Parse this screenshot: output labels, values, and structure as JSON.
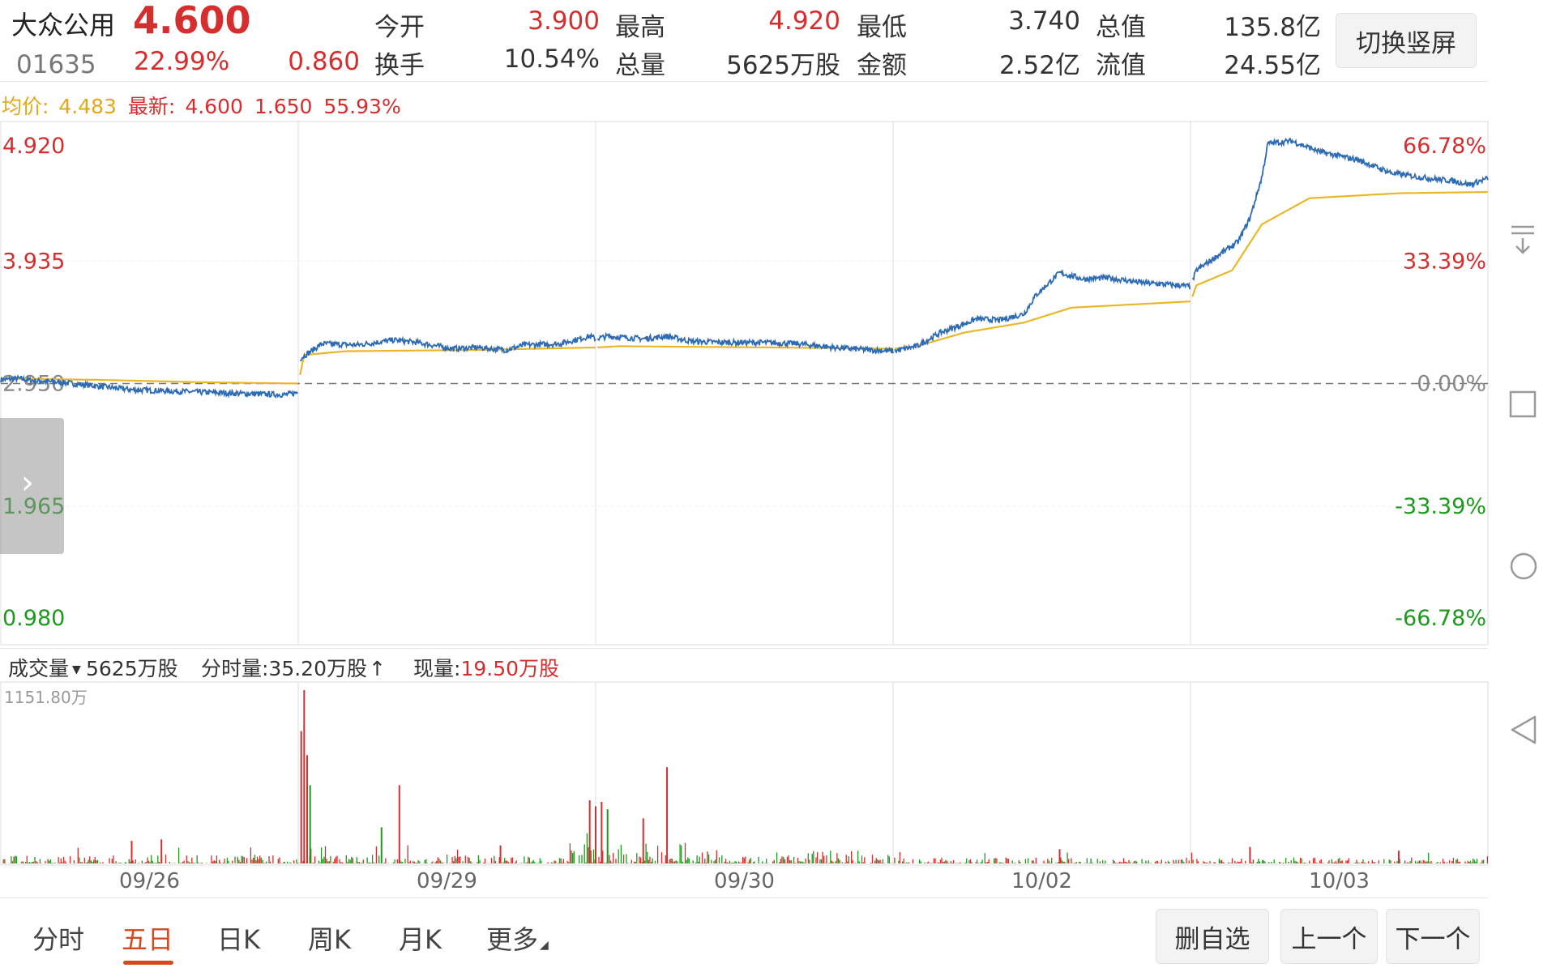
{
  "stock": {
    "name": "大众公用",
    "price": "4.600",
    "code": "01635",
    "change_pct": "22.99%",
    "change": "0.860"
  },
  "quote": {
    "open_label": "今开",
    "open": "3.900",
    "high_label": "最高",
    "high": "4.920",
    "low_label": "最低",
    "low": "3.740",
    "mktcap_label": "总值",
    "mktcap": "135.8亿",
    "turnover_label": "换手",
    "turnover": "10.54%",
    "volume_label": "总量",
    "volume": "5625万股",
    "amount_label": "金额",
    "amount": "2.52亿",
    "float_label": "流值",
    "float": "24.55亿"
  },
  "switch_button": "切换竖屏",
  "avg_bar": {
    "avg_label": "均价:",
    "avg_value": "4.483",
    "latest_label": "最新:",
    "latest_value": "4.600",
    "change": "1.650",
    "change_pct": "55.93%"
  },
  "volume_bar": {
    "selector": "成交量",
    "total": "5625万股",
    "tick_label": "分时量:35.20万股",
    "arrow": "↑",
    "current_label": "现量:",
    "current_value": "19.50万股"
  },
  "tabs": [
    "分时",
    "五日",
    "日K",
    "周K",
    "月K",
    "更多"
  ],
  "active_tab": 1,
  "actions": {
    "remove_watch": "删自选",
    "prev": "上一个",
    "next": "下一个"
  },
  "colors": {
    "up": "#d42e2e",
    "down": "#1c9a1c",
    "price_line": "#2e6bb5",
    "avg_line": "#e8b82a"
  },
  "chart_data": {
    "type": "line",
    "x": [
      "09/26",
      "09/29",
      "09/30",
      "10/02",
      "10/03"
    ],
    "y_ticks": [
      "4.920",
      "3.935",
      "2.950",
      "1.965",
      "0.980"
    ],
    "pct_ticks": [
      "66.78%",
      "33.39%",
      "0.00%",
      "-33.39%",
      "-66.78%"
    ],
    "ylim": [
      0.98,
      4.92
    ],
    "prev_close": 2.95,
    "series": [
      {
        "role": "price",
        "anchors": [
          [
            0,
            2.98
          ],
          [
            3,
            2.99
          ],
          [
            6,
            2.97
          ],
          [
            10,
            2.96
          ],
          [
            14,
            2.94
          ],
          [
            18,
            2.92
          ],
          [
            22,
            2.9
          ],
          [
            28,
            2.89
          ],
          [
            34,
            2.88
          ],
          [
            40,
            2.87
          ],
          [
            48,
            2.86
          ],
          [
            50,
            2.88
          ],
          [
            50.3,
            3.15
          ],
          [
            54,
            3.27
          ],
          [
            60,
            3.26
          ],
          [
            66,
            3.3
          ],
          [
            70,
            3.28
          ],
          [
            76,
            3.23
          ],
          [
            80,
            3.24
          ],
          [
            85,
            3.22
          ],
          [
            88,
            3.26
          ],
          [
            94,
            3.27
          ],
          [
            99,
            3.33
          ],
          [
            100,
            3.31
          ],
          [
            102,
            3.33
          ],
          [
            108,
            3.31
          ],
          [
            112,
            3.33
          ],
          [
            116,
            3.29
          ],
          [
            122,
            3.28
          ],
          [
            128,
            3.28
          ],
          [
            134,
            3.27
          ],
          [
            140,
            3.24
          ],
          [
            146,
            3.22
          ],
          [
            150,
            3.21
          ],
          [
            154,
            3.25
          ],
          [
            158,
            3.36
          ],
          [
            162,
            3.43
          ],
          [
            164,
            3.47
          ],
          [
            168,
            3.46
          ],
          [
            172,
            3.51
          ],
          [
            174,
            3.66
          ],
          [
            178,
            3.84
          ],
          [
            182,
            3.79
          ],
          [
            186,
            3.8
          ],
          [
            192,
            3.76
          ],
          [
            198,
            3.74
          ],
          [
            200,
            3.73
          ],
          [
            201,
            3.86
          ],
          [
            204,
            3.96
          ],
          [
            208,
            4.09
          ],
          [
            210,
            4.28
          ],
          [
            212,
            4.61
          ],
          [
            213,
            4.88
          ],
          [
            217,
            4.9
          ],
          [
            222,
            4.81
          ],
          [
            228,
            4.75
          ],
          [
            234,
            4.64
          ],
          [
            240,
            4.6
          ],
          [
            244,
            4.58
          ],
          [
            247,
            4.55
          ],
          [
            250,
            4.6
          ]
        ]
      },
      {
        "role": "average",
        "anchors": [
          [
            0,
            2.99
          ],
          [
            16,
            2.98
          ],
          [
            34,
            2.96
          ],
          [
            50,
            2.95
          ],
          [
            51,
            3.18
          ],
          [
            58,
            3.21
          ],
          [
            80,
            3.22
          ],
          [
            100,
            3.24
          ],
          [
            104,
            3.25
          ],
          [
            130,
            3.24
          ],
          [
            150,
            3.23
          ],
          [
            154,
            3.25
          ],
          [
            162,
            3.36
          ],
          [
            172,
            3.44
          ],
          [
            180,
            3.56
          ],
          [
            200,
            3.61
          ],
          [
            201,
            3.74
          ],
          [
            207,
            3.86
          ],
          [
            212,
            4.23
          ],
          [
            220,
            4.44
          ],
          [
            235,
            4.48
          ],
          [
            250,
            4.49
          ]
        ]
      }
    ],
    "volume": {
      "ymax_label": "1151.80万",
      "ymax": 1151.8,
      "spikes": [
        [
          50.5,
          880
        ],
        [
          51,
          1151.8
        ],
        [
          51.5,
          720
        ],
        [
          52,
          520
        ],
        [
          67,
          520
        ],
        [
          99,
          420
        ],
        [
          100,
          380
        ],
        [
          101,
          410
        ],
        [
          102,
          360
        ],
        [
          112,
          640
        ],
        [
          108,
          300
        ],
        [
          22,
          150
        ],
        [
          27,
          160
        ],
        [
          64,
          240
        ],
        [
          84,
          120
        ],
        [
          178,
          95
        ],
        [
          210,
          110
        ],
        [
          235,
          85
        ]
      ]
    }
  }
}
